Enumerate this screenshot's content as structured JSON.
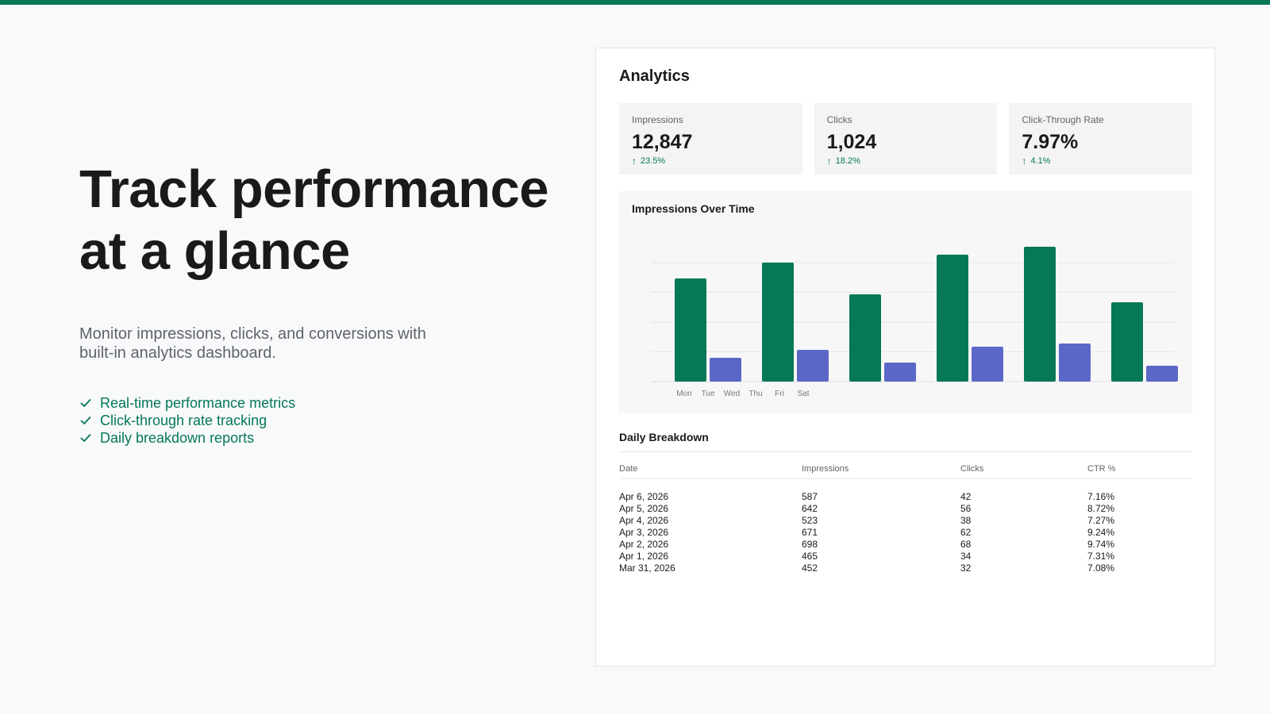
{
  "hero": {
    "title_line1": "Track performance",
    "title_line2": "at a glance",
    "subtitle": "Monitor impressions, clicks, and conversions with built-in analytics dashboard.",
    "features": [
      {
        "label": "Real-time performance metrics",
        "icon": "check-icon"
      },
      {
        "label": "Click-through rate tracking",
        "icon": "check-icon"
      },
      {
        "label": "Daily breakdown reports",
        "icon": "check-icon"
      }
    ]
  },
  "dashboard": {
    "title": "Analytics",
    "stats": [
      {
        "label": "Impressions",
        "value": "12,847",
        "change": "23.5%",
        "icon": "arrow-up-icon"
      },
      {
        "label": "Clicks",
        "value": "1,024",
        "change": "18.2%",
        "icon": "arrow-up-icon"
      },
      {
        "label": "Click-Through Rate",
        "value": "7.97%",
        "change": "4.1%",
        "icon": "arrow-up-icon"
      }
    ],
    "breakdown": {
      "title": "Daily Breakdown",
      "columns": [
        "Date",
        "Impressions",
        "Clicks",
        "CTR %"
      ],
      "rows": [
        [
          "Apr 6, 2026",
          "587",
          "42",
          "7.16%"
        ],
        [
          "Apr 5, 2026",
          "642",
          "56",
          "8.72%"
        ],
        [
          "Apr 4, 2026",
          "523",
          "38",
          "7.27%"
        ],
        [
          "Apr 3, 2026",
          "671",
          "62",
          "9.24%"
        ],
        [
          "Apr 2, 2026",
          "698",
          "68",
          "9.74%"
        ],
        [
          "Apr 1, 2026",
          "465",
          "34",
          "7.31%"
        ],
        [
          "Mar 31, 2026",
          "452",
          "32",
          "7.08%"
        ]
      ]
    }
  },
  "colors": {
    "accent": "#047857",
    "impressions_bar": "#047857",
    "clicks_bar": "#5b67c7"
  },
  "chart_data": {
    "type": "bar",
    "title": "Impressions Over Time",
    "categories": [
      "Mon",
      "Tue",
      "Wed",
      "Thu",
      "Fri",
      "Sat"
    ],
    "series": [
      {
        "values": [
          650,
          750,
          550,
          800,
          850,
          500
        ]
      },
      {
        "values": [
          150,
          200,
          120,
          220,
          240,
          100
        ]
      }
    ],
    "ylim": [
      0,
      850
    ],
    "grid": true
  }
}
